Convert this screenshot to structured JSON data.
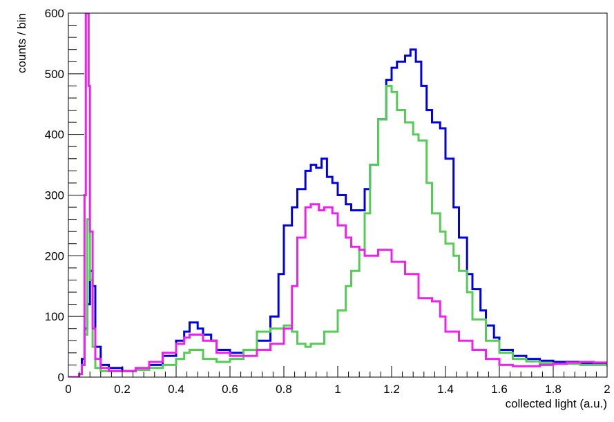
{
  "chart_data": {
    "type": "line",
    "step": true,
    "xlabel": "collected light (a.u.)",
    "ylabel": "counts / bin",
    "xlim": [
      0,
      2
    ],
    "ylim": [
      0,
      600
    ],
    "x_ticks": [
      "0",
      "0.2",
      "0.4",
      "0.6",
      "0.8",
      "1",
      "1.2",
      "1.4",
      "1.6",
      "1.8",
      "2"
    ],
    "y_ticks": [
      "0",
      "100",
      "200",
      "300",
      "400",
      "500",
      "600"
    ],
    "grid": false,
    "legend": "none",
    "series": [
      {
        "color": "#0000e0",
        "x": [
          0.0,
          0.04,
          0.05,
          0.06,
          0.07,
          0.08,
          0.09,
          0.1,
          0.12,
          0.15,
          0.2,
          0.25,
          0.3,
          0.35,
          0.4,
          0.43,
          0.45,
          0.48,
          0.5,
          0.53,
          0.55,
          0.6,
          0.65,
          0.7,
          0.75,
          0.78,
          0.8,
          0.83,
          0.85,
          0.88,
          0.9,
          0.92,
          0.94,
          0.96,
          0.98,
          1.0,
          1.03,
          1.05,
          1.08,
          1.1,
          1.12,
          1.15,
          1.18,
          1.2,
          1.22,
          1.25,
          1.27,
          1.29,
          1.31,
          1.33,
          1.35,
          1.38,
          1.4,
          1.43,
          1.45,
          1.48,
          1.5,
          1.53,
          1.55,
          1.58,
          1.6,
          1.65,
          1.7,
          1.75,
          1.8,
          1.85,
          1.9,
          1.95,
          2.0
        ],
        "y": [
          0,
          5,
          30,
          80,
          120,
          175,
          150,
          50,
          20,
          15,
          10,
          12,
          20,
          35,
          60,
          75,
          90,
          80,
          70,
          60,
          45,
          40,
          45,
          60,
          100,
          170,
          250,
          280,
          310,
          340,
          350,
          345,
          360,
          330,
          320,
          300,
          285,
          275,
          275,
          310,
          350,
          425,
          490,
          510,
          520,
          530,
          540,
          520,
          480,
          440,
          420,
          410,
          360,
          280,
          230,
          170,
          145,
          110,
          85,
          65,
          45,
          35,
          30,
          27,
          25,
          25,
          22,
          22,
          18
        ]
      },
      {
        "color": "#55cc55",
        "x": [
          0.0,
          0.04,
          0.05,
          0.06,
          0.07,
          0.08,
          0.09,
          0.1,
          0.12,
          0.15,
          0.2,
          0.25,
          0.3,
          0.35,
          0.4,
          0.43,
          0.45,
          0.5,
          0.55,
          0.6,
          0.65,
          0.7,
          0.75,
          0.8,
          0.83,
          0.85,
          0.88,
          0.9,
          0.95,
          1.0,
          1.03,
          1.05,
          1.08,
          1.1,
          1.12,
          1.15,
          1.18,
          1.2,
          1.22,
          1.25,
          1.28,
          1.3,
          1.33,
          1.35,
          1.38,
          1.4,
          1.43,
          1.45,
          1.48,
          1.5,
          1.55,
          1.6,
          1.65,
          1.7,
          1.75,
          1.8,
          1.85,
          1.9,
          1.95,
          2.0
        ],
        "y": [
          0,
          5,
          20,
          70,
          260,
          160,
          50,
          15,
          10,
          10,
          10,
          12,
          15,
          20,
          30,
          40,
          45,
          30,
          25,
          30,
          45,
          75,
          80,
          85,
          75,
          55,
          50,
          55,
          75,
          110,
          150,
          175,
          210,
          270,
          350,
          425,
          480,
          470,
          440,
          420,
          400,
          390,
          320,
          270,
          240,
          220,
          200,
          175,
          140,
          95,
          60,
          40,
          30,
          26,
          23,
          22,
          22,
          20,
          20,
          18
        ]
      },
      {
        "color": "#ee22ee",
        "x": [
          0.0,
          0.04,
          0.05,
          0.06,
          0.065,
          0.07,
          0.075,
          0.08,
          0.09,
          0.1,
          0.12,
          0.15,
          0.2,
          0.25,
          0.3,
          0.35,
          0.4,
          0.43,
          0.45,
          0.5,
          0.55,
          0.6,
          0.65,
          0.7,
          0.75,
          0.8,
          0.83,
          0.85,
          0.88,
          0.9,
          0.93,
          0.95,
          0.98,
          1.0,
          1.03,
          1.05,
          1.08,
          1.1,
          1.15,
          1.2,
          1.25,
          1.3,
          1.35,
          1.38,
          1.4,
          1.45,
          1.5,
          1.55,
          1.6,
          1.65,
          1.7,
          1.75,
          1.8,
          1.85,
          1.9,
          1.95,
          2.0
        ],
        "y": [
          0,
          5,
          20,
          300,
          600,
          600,
          480,
          240,
          80,
          30,
          15,
          10,
          10,
          15,
          25,
          40,
          55,
          65,
          70,
          60,
          40,
          35,
          35,
          45,
          55,
          80,
          150,
          230,
          280,
          285,
          275,
          280,
          270,
          250,
          230,
          215,
          210,
          200,
          210,
          190,
          170,
          130,
          125,
          100,
          75,
          60,
          45,
          30,
          20,
          18,
          18,
          20,
          22,
          24,
          25,
          24,
          22
        ]
      }
    ]
  }
}
